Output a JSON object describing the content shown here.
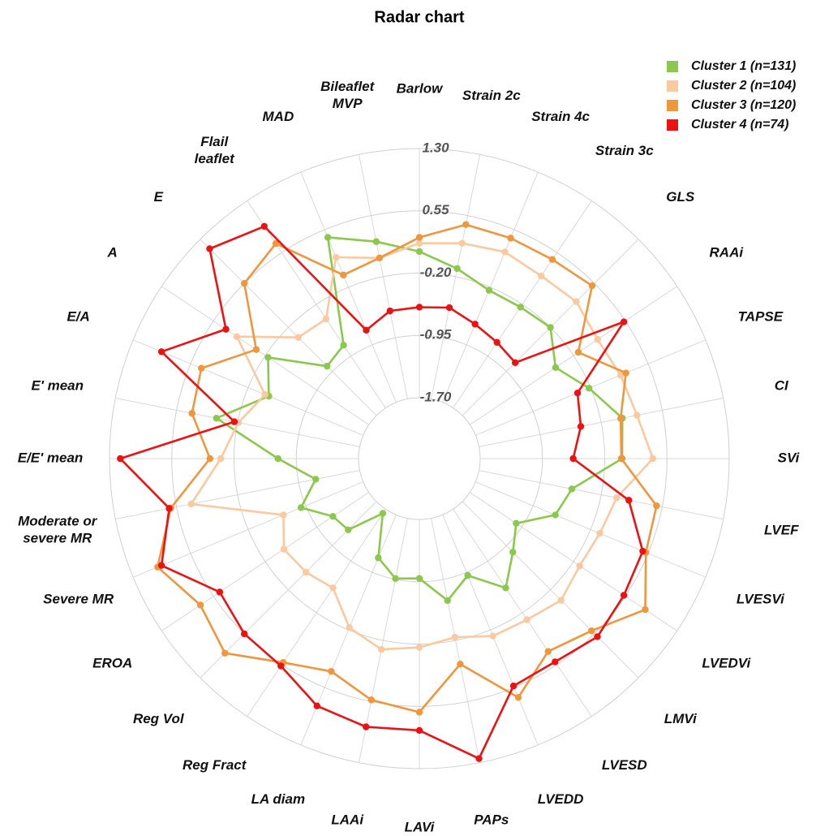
{
  "chart_data": {
    "type": "radar",
    "title": "Radar chart",
    "categories": [
      "Barlow",
      "Strain 2c",
      "Strain 4c",
      "Strain 3c",
      "GLS",
      "RAAi",
      "TAPSE",
      "CI",
      "SVi",
      "LVEF",
      "LVESVi",
      "LVEDVi",
      "LMVi",
      "LVESD",
      "LVEDD",
      "PAPs",
      "LAVi",
      "LAAi",
      "LA diam",
      "Reg Fract",
      "Reg Vol",
      "EROA",
      "Severe MR",
      "Moderate or severe MR",
      "E/E' mean",
      "E' mean",
      "E/A",
      "A",
      "E",
      "Flail leaflet",
      "MAD",
      "Bileaflet MVP"
    ],
    "series": [
      {
        "name": "Cluster 1 (n=131)",
        "color": "#8cc84b",
        "values": [
          0.06,
          -0.1,
          -0.24,
          -0.24,
          -0.2,
          -0.46,
          -0.22,
          0.06,
          0.01,
          -0.56,
          -0.66,
          -1.03,
          -0.84,
          -0.56,
          -0.91,
          -0.69,
          -0.99,
          -0.96,
          -1.14,
          -1.64,
          -1.22,
          -1.18,
          -0.89,
          -1.16,
          -0.73,
          0.06,
          -0.47,
          -0.24,
          -0.86,
          -0.79,
          0.45,
          0.23
        ]
      },
      {
        "name": "Cluster 2 (n=104)",
        "color": "#fbc9a0",
        "values": [
          0.16,
          0.21,
          0.26,
          0.21,
          0.24,
          0.15,
          0.19,
          0.24,
          0.38,
          -0.01,
          -0.08,
          -0.11,
          -0.02,
          -0.1,
          -0.12,
          -0.24,
          -0.16,
          -0.09,
          -0.23,
          -0.56,
          -0.5,
          -0.47,
          -0.66,
          0.37,
          -0.04,
          -0.21,
          -0.42,
          0.21,
          -0.37,
          -0.41,
          0.19,
          0.03
        ]
      },
      {
        "name": "Cluster 3 (n=120)",
        "color": "#f0963c",
        "values": [
          0.23,
          0.44,
          0.44,
          0.45,
          0.51,
          -0.13,
          0.26,
          0.04,
          0.0,
          0.48,
          0.52,
          0.84,
          0.5,
          0.36,
          0.68,
          0.09,
          0.62,
          0.53,
          0.34,
          0.52,
          0.88,
          0.74,
          0.98,
          0.62,
          0.09,
          0.36,
          0.41,
          -0.07,
          0.55,
          0.68,
          -0.04,
          0.03
        ]
      },
      {
        "name": "Cluster 4 (n=74)",
        "color": "#ee1111",
        "values": [
          -0.61,
          -0.58,
          -0.68,
          -0.75,
          -0.8,
          0.53,
          -0.37,
          -0.45,
          -0.58,
          0.14,
          0.48,
          0.53,
          0.6,
          0.51,
          0.53,
          1.25,
          0.84,
          0.86,
          0.79,
          0.57,
          0.55,
          0.46,
          0.93,
          0.64,
          1.17,
          -0.16,
          0.93,
          0.37,
          1.14,
          0.93,
          -0.76,
          -0.62
        ]
      }
    ],
    "ylim": [
      -1.7,
      1.3
    ],
    "yticks": [
      {
        "value": -1.7,
        "label": "-1.70"
      },
      -0.95,
      {
        "value": -0.2,
        "label": "-0.20"
      },
      0.55,
      {
        "value": 1.3,
        "label": "1.30"
      }
    ],
    "grid": true,
    "legend": "top-right"
  }
}
